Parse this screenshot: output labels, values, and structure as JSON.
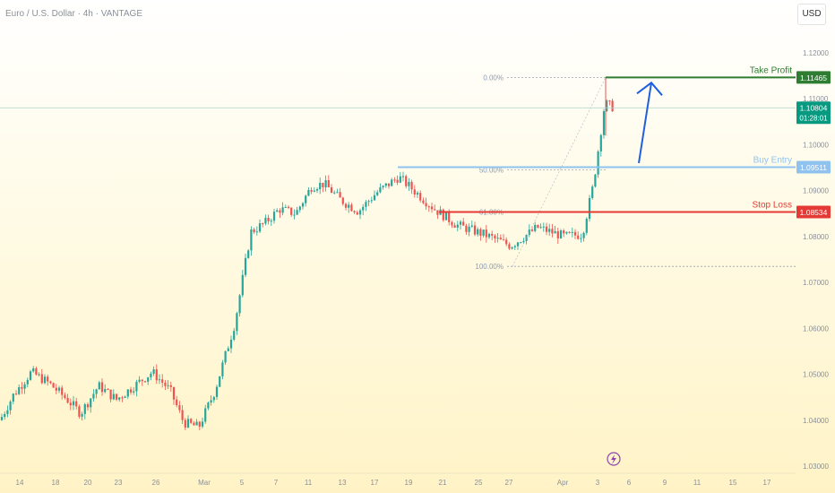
{
  "header": {
    "symbol_title": "Euro / U.S. Dollar · 4h · VANTAGE",
    "currency_button": "USD"
  },
  "colors": {
    "up": "#26a69a",
    "down": "#ef5350",
    "take_profit": "#2e7d32",
    "buy_entry": "#90c2f0",
    "stop_loss": "#e53935",
    "arrow": "#1f5fe0",
    "last_price": "#089981"
  },
  "chart_data": {
    "type": "candlestick",
    "title": "Euro / U.S. Dollar · 4h · VANTAGE",
    "ylim": [
      1.03,
      1.125
    ],
    "y_ticks": [
      "1.12000",
      "1.11000",
      "1.10000",
      "1.09000",
      "1.08000",
      "1.07000",
      "1.06000",
      "1.05000",
      "1.04000",
      "1.03000"
    ],
    "x_ticks": [
      "14",
      "18",
      "20",
      "23",
      "26",
      "Mar",
      "5",
      "7",
      "11",
      "13",
      "17",
      "19",
      "21",
      "25",
      "27",
      "Apr",
      "3",
      "6",
      "9",
      "11",
      "15",
      "17"
    ],
    "price_path": [
      {
        "x": 0,
        "y": 1.04
      },
      {
        "x": 15,
        "y": 1.0455
      },
      {
        "x": 35,
        "y": 1.0505
      },
      {
        "x": 55,
        "y": 1.048
      },
      {
        "x": 75,
        "y": 1.0445
      },
      {
        "x": 90,
        "y": 1.0415
      },
      {
        "x": 110,
        "y": 1.0475
      },
      {
        "x": 130,
        "y": 1.0445
      },
      {
        "x": 150,
        "y": 1.0475
      },
      {
        "x": 170,
        "y": 1.0505
      },
      {
        "x": 190,
        "y": 1.0465
      },
      {
        "x": 205,
        "y": 1.0395
      },
      {
        "x": 222,
        "y": 1.0385
      },
      {
        "x": 240,
        "y": 1.0465
      },
      {
        "x": 262,
        "y": 1.061
      },
      {
        "x": 280,
        "y": 1.081
      },
      {
        "x": 296,
        "y": 1.083
      },
      {
        "x": 312,
        "y": 1.086
      },
      {
        "x": 330,
        "y": 1.085
      },
      {
        "x": 348,
        "y": 1.091
      },
      {
        "x": 362,
        "y": 1.0915
      },
      {
        "x": 380,
        "y": 1.088
      },
      {
        "x": 400,
        "y": 1.0855
      },
      {
        "x": 420,
        "y": 1.0895
      },
      {
        "x": 445,
        "y": 1.093
      },
      {
        "x": 465,
        "y": 1.0895
      },
      {
        "x": 485,
        "y": 1.086
      },
      {
        "x": 510,
        "y": 1.0825
      },
      {
        "x": 540,
        "y": 1.0805
      },
      {
        "x": 570,
        "y": 1.078
      },
      {
        "x": 600,
        "y": 1.082
      },
      {
        "x": 630,
        "y": 1.08
      },
      {
        "x": 650,
        "y": 1.0805
      },
      {
        "x": 662,
        "y": 1.091
      },
      {
        "x": 675,
        "y": 1.109
      },
      {
        "x": 686,
        "y": 1.108
      }
    ],
    "fibonacci": [
      {
        "label": "0.00%",
        "price": 1.11465
      },
      {
        "label": "50.00%",
        "price": 1.0945
      },
      {
        "label": "61.80%",
        "price": 1.0853
      },
      {
        "label": "100.00%",
        "price": 1.0735
      }
    ],
    "levels": [
      {
        "name": "Take Profit",
        "price": 1.11465,
        "label": "1.11465",
        "color": "#2e7d32"
      },
      {
        "name": "Buy Entry",
        "price": 1.09511,
        "label": "1.09511",
        "color": "#90c2f0"
      },
      {
        "name": "Stop Loss",
        "price": 1.08534,
        "label": "1.08534",
        "color": "#e53935"
      }
    ],
    "last_price": {
      "price": 1.10804,
      "label": "1.10804",
      "countdown": "01:28:01"
    }
  }
}
